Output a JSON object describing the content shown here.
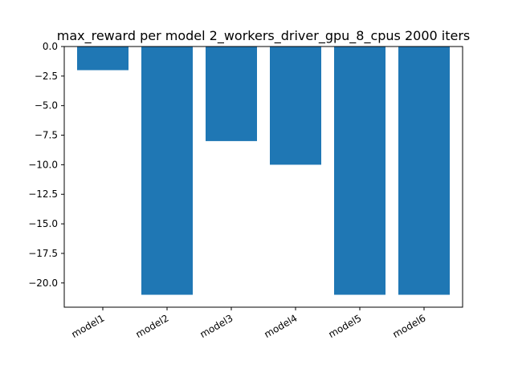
{
  "chart_data": {
    "type": "bar",
    "title": "max_reward per model 2_workers_driver_gpu_8_cpus 2000 iters",
    "xlabel": "",
    "ylabel": "",
    "categories": [
      "model1",
      "model2",
      "model3",
      "model4",
      "model5",
      "model6"
    ],
    "values": [
      -2,
      -21,
      -8,
      -10,
      -21,
      -21
    ],
    "ylim": [
      -22.05,
      0
    ],
    "yticks": [
      "0.0",
      "−2.5",
      "−5.0",
      "−7.5",
      "−10.0",
      "−12.5",
      "−15.0",
      "−17.5",
      "−20.0"
    ],
    "grid": false,
    "bar_color": "#1f77b4"
  }
}
